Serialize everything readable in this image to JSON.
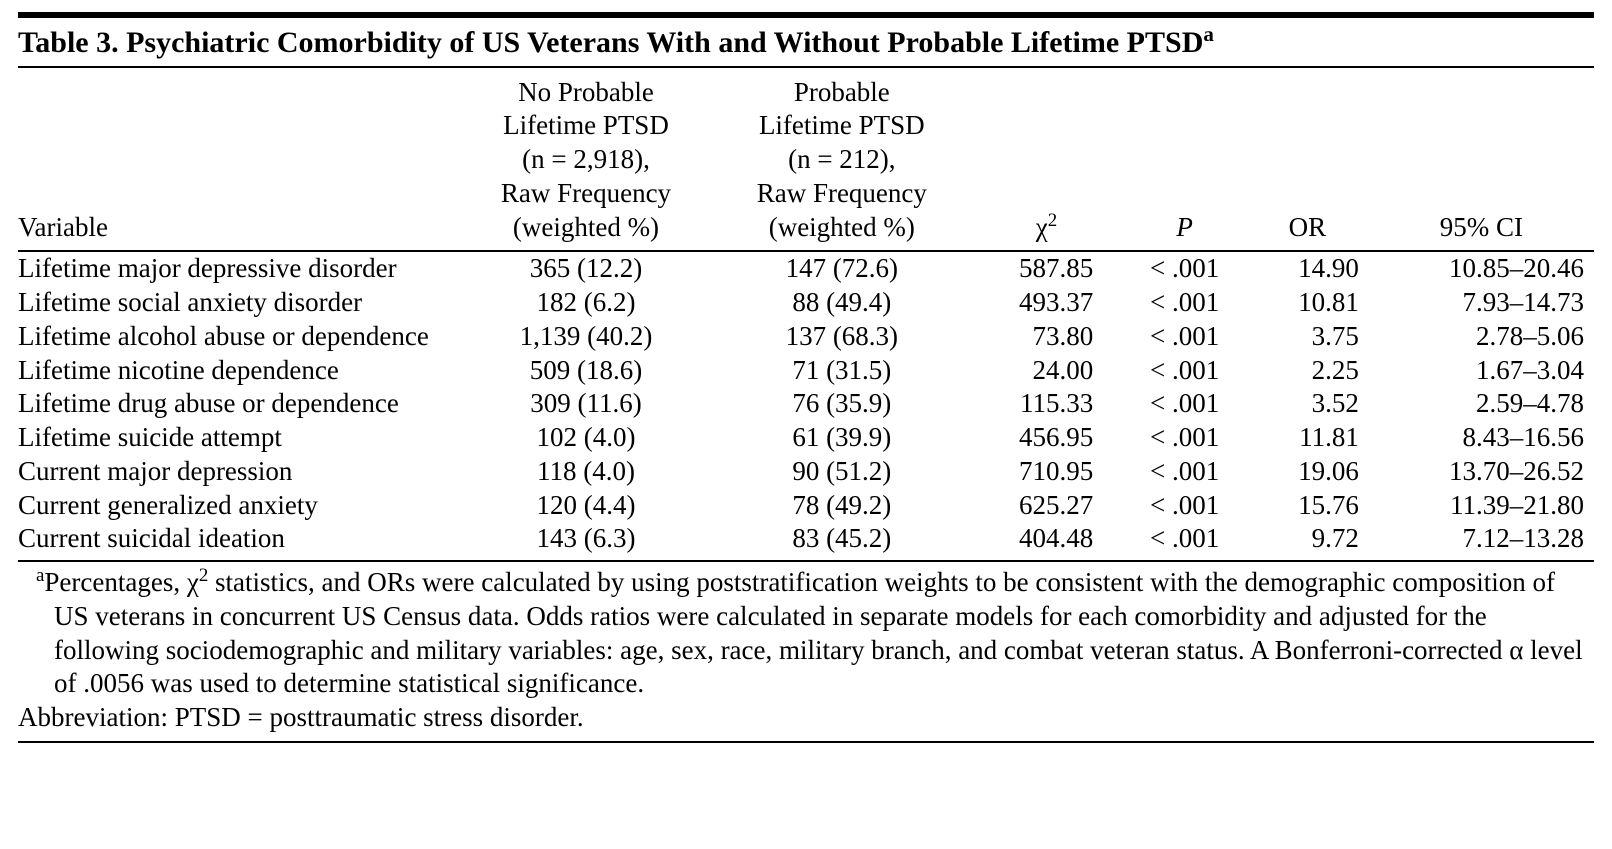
{
  "title_html": "Table 3. Psychiatric Comorbidity of US Veterans With and Without Probable Lifetime PTSD<sup>a</sup>",
  "headers": {
    "variable": "Variable",
    "no_ptsd_html": "No Probable<br>Lifetime PTSD<br>(n = 2,918),<br>Raw Frequency<br>(weighted %)",
    "ptsd_html": "Probable<br>Lifetime PTSD<br>(n = 212),<br>Raw Frequency<br>(weighted %)",
    "chi2_html": "χ<sup>2</sup>",
    "p_html": "<i>P</i>",
    "or": "OR",
    "ci": "95% CI"
  },
  "rows": [
    {
      "variable": "Lifetime major depressive disorder",
      "noptsd": "365 (12.2)",
      "ptsd": "147 (72.6)",
      "chi2": "587.85",
      "p": "< .001",
      "or": "14.90",
      "ci": "10.85–20.46"
    },
    {
      "variable": "Lifetime social anxiety disorder",
      "noptsd": "182 (6.2)",
      "ptsd": "88 (49.4)",
      "chi2": "493.37",
      "p": "< .001",
      "or": "10.81",
      "ci": "7.93–14.73"
    },
    {
      "variable": "Lifetime alcohol abuse or dependence",
      "noptsd": "1,139 (40.2)",
      "ptsd": "137 (68.3)",
      "chi2": "73.80",
      "p": "< .001",
      "or": "3.75",
      "ci": "2.78–5.06"
    },
    {
      "variable": "Lifetime nicotine dependence",
      "noptsd": "509 (18.6)",
      "ptsd": "71 (31.5)",
      "chi2": "24.00",
      "p": "< .001",
      "or": "2.25",
      "ci": "1.67–3.04"
    },
    {
      "variable": "Lifetime drug abuse or dependence",
      "noptsd": "309 (11.6)",
      "ptsd": "76 (35.9)",
      "chi2": "115.33",
      "p": "< .001",
      "or": "3.52",
      "ci": "2.59–4.78"
    },
    {
      "variable": "Lifetime suicide attempt",
      "noptsd": "102 (4.0)",
      "ptsd": "61 (39.9)",
      "chi2": "456.95",
      "p": "< .001",
      "or": "11.81",
      "ci": "8.43–16.56"
    },
    {
      "variable": "Current major depression",
      "noptsd": "118 (4.0)",
      "ptsd": "90 (51.2)",
      "chi2": "710.95",
      "p": "< .001",
      "or": "19.06",
      "ci": "13.70–26.52"
    },
    {
      "variable": "Current generalized anxiety",
      "noptsd": "120 (4.4)",
      "ptsd": "78 (49.2)",
      "chi2": "625.27",
      "p": "< .001",
      "or": "15.76",
      "ci": "11.39–21.80"
    },
    {
      "variable": "Current suicidal ideation",
      "noptsd": "143 (6.3)",
      "ptsd": "83 (45.2)",
      "chi2": "404.48",
      "p": "< .001",
      "or": "9.72",
      "ci": "7.12–13.28"
    }
  ],
  "footnote_html": "<sup>a</sup>Percentages, χ<sup>2</sup> statistics, and ORs were calculated by using poststratification weights to be consistent with the demographic composition of US veterans in concurrent US Census data. Odds ratios were calculated in separate models for each comorbidity and adjusted for the following sociodemographic and military variables: age, sex, race, military branch, and combat veteran status. A Bonferroni-corrected α level of .0056 was used to determine statistical significance.",
  "abbreviation": "Abbreviation: PTSD = posttraumatic stress disorder."
}
